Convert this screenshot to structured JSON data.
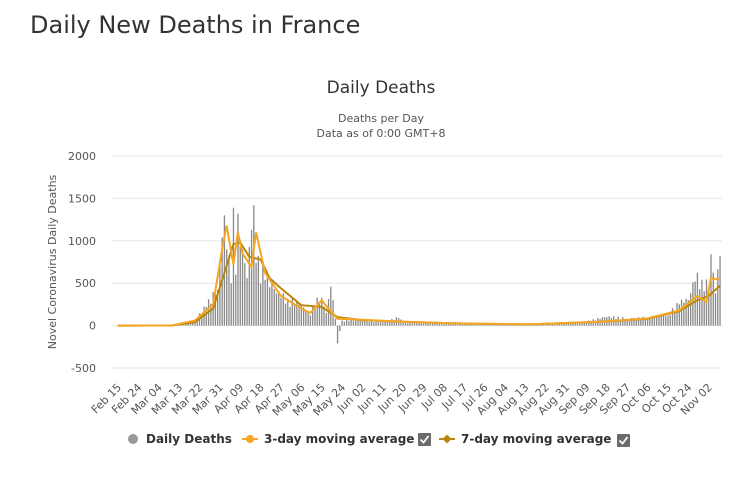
{
  "page": {
    "heading": "Daily New Deaths in France"
  },
  "colors": {
    "bars": "#888888",
    "avg3": "#f5a623",
    "avg7": "#b8860b",
    "grid": "#e6e6e6"
  },
  "chart_data": {
    "type": "bar",
    "title": "Daily Deaths",
    "subtitle_lines": [
      "Deaths per Day",
      "Data as of 0:00 GMT+8"
    ],
    "xlabel": "",
    "ylabel": "Novel Coronavirus Daily Deaths",
    "ylim": [
      -500,
      2000
    ],
    "yticks": [
      2000,
      1500,
      1000,
      500,
      0,
      -500
    ],
    "x_tick_labels": [
      "Feb 15",
      "Feb 24",
      "Mar 04",
      "Mar 13",
      "Mar 22",
      "Mar 31",
      "Apr 09",
      "Apr 18",
      "Apr 27",
      "May 06",
      "May 15",
      "May 24",
      "Jun 02",
      "Jun 11",
      "Jun 20",
      "Jun 29",
      "Jul 08",
      "Jul 17",
      "Jul 26",
      "Aug 04",
      "Aug 13",
      "Aug 22",
      "Aug 31",
      "Sep 09",
      "Sep 18",
      "Sep 27",
      "Oct 06",
      "Oct 15",
      "Oct 24",
      "Nov 02"
    ],
    "x_start": "Feb 15",
    "x_end": "Nov 07",
    "grid": true,
    "legend_position": "bottom",
    "daily_anchor_points": [
      [
        "Feb 15",
        0
      ],
      [
        "Mar 10",
        2
      ],
      [
        "Mar 15",
        10
      ],
      [
        "Mar 20",
        60
      ],
      [
        "Mar 25",
        220
      ],
      [
        "Mar 30",
        420
      ],
      [
        "Apr 02",
        1300
      ],
      [
        "Apr 03",
        900
      ],
      [
        "Apr 05",
        500
      ],
      [
        "Apr 06",
        1390
      ],
      [
        "Apr 07",
        600
      ],
      [
        "Apr 08",
        1320
      ],
      [
        "Apr 10",
        900
      ],
      [
        "Apr 12",
        560
      ],
      [
        "Apr 15",
        1420
      ],
      [
        "Apr 16",
        740
      ],
      [
        "Apr 20",
        540
      ],
      [
        "Apr 25",
        380
      ],
      [
        "Apr 30",
        290
      ],
      [
        "May 05",
        250
      ],
      [
        "May 10",
        120
      ],
      [
        "May 13",
        330
      ],
      [
        "May 15",
        330
      ],
      [
        "May 17",
        150
      ],
      [
        "May 19",
        460
      ],
      [
        "May 21",
        80
      ],
      [
        "May 22",
        -210
      ],
      [
        "May 24",
        60
      ],
      [
        "Jun 02",
        60
      ],
      [
        "Jun 11",
        40
      ],
      [
        "Jun 18",
        90
      ],
      [
        "Jun 20",
        30
      ],
      [
        "Jul 01",
        25
      ],
      [
        "Jul 17",
        35
      ],
      [
        "Jul 30",
        12
      ],
      [
        "Aug 15",
        15
      ],
      [
        "Aug 31",
        22
      ],
      [
        "Sep 09",
        45
      ],
      [
        "Sep 18",
        100
      ],
      [
        "Sep 27",
        80
      ],
      [
        "Oct 06",
        90
      ],
      [
        "Oct 15",
        120
      ],
      [
        "Oct 20",
        250
      ],
      [
        "Oct 24",
        300
      ],
      [
        "Oct 27",
        520
      ],
      [
        "Oct 30",
        540
      ],
      [
        "Nov 02",
        420
      ],
      [
        "Nov 03",
        840
      ],
      [
        "Nov 05",
        380
      ],
      [
        "Nov 07",
        820
      ]
    ],
    "series": [
      {
        "name": "Daily Deaths",
        "kind": "bar",
        "color": "#999999",
        "visible": true
      },
      {
        "name": "3-day moving average",
        "kind": "line",
        "color": "#f5a623",
        "visible": true,
        "values": [
          [
            "Feb 15",
            0
          ],
          [
            "Mar 10",
            2
          ],
          [
            "Mar 20",
            60
          ],
          [
            "Mar 28",
            250
          ],
          [
            "Apr 01",
            900
          ],
          [
            "Apr 03",
            1180
          ],
          [
            "Apr 06",
            720
          ],
          [
            "Apr 08",
            1100
          ],
          [
            "Apr 10",
            850
          ],
          [
            "Apr 14",
            690
          ],
          [
            "Apr 16",
            1100
          ],
          [
            "Apr 20",
            620
          ],
          [
            "Apr 27",
            350
          ],
          [
            "May 06",
            200
          ],
          [
            "May 10",
            150
          ],
          [
            "May 15",
            300
          ],
          [
            "May 18",
            200
          ],
          [
            "May 22",
            80
          ],
          [
            "Jun 02",
            70
          ],
          [
            "Jun 20",
            45
          ],
          [
            "Jul 15",
            25
          ],
          [
            "Aug 15",
            15
          ],
          [
            "Sep 15",
            45
          ],
          [
            "Oct 06",
            85
          ],
          [
            "Oct 20",
            180
          ],
          [
            "Oct 28",
            350
          ],
          [
            "Nov 01",
            280
          ],
          [
            "Nov 03",
            560
          ],
          [
            "Nov 07",
            540
          ]
        ]
      },
      {
        "name": "7-day moving average",
        "kind": "line",
        "color": "#b8860b",
        "visible": true,
        "values": [
          [
            "Feb 15",
            0
          ],
          [
            "Mar 10",
            2
          ],
          [
            "Mar 20",
            40
          ],
          [
            "Mar 28",
            200
          ],
          [
            "Apr 02",
            620
          ],
          [
            "Apr 06",
            960
          ],
          [
            "Apr 09",
            980
          ],
          [
            "Apr 13",
            810
          ],
          [
            "Apr 18",
            780
          ],
          [
            "Apr 22",
            560
          ],
          [
            "Apr 27",
            440
          ],
          [
            "May 06",
            240
          ],
          [
            "May 15",
            220
          ],
          [
            "May 22",
            100
          ],
          [
            "Jun 02",
            65
          ],
          [
            "Jun 20",
            45
          ],
          [
            "Jul 15",
            25
          ],
          [
            "Aug 15",
            14
          ],
          [
            "Sep 15",
            45
          ],
          [
            "Oct 06",
            80
          ],
          [
            "Oct 20",
            170
          ],
          [
            "Oct 28",
            300
          ],
          [
            "Nov 02",
            350
          ],
          [
            "Nov 07",
            470
          ]
        ]
      }
    ]
  }
}
